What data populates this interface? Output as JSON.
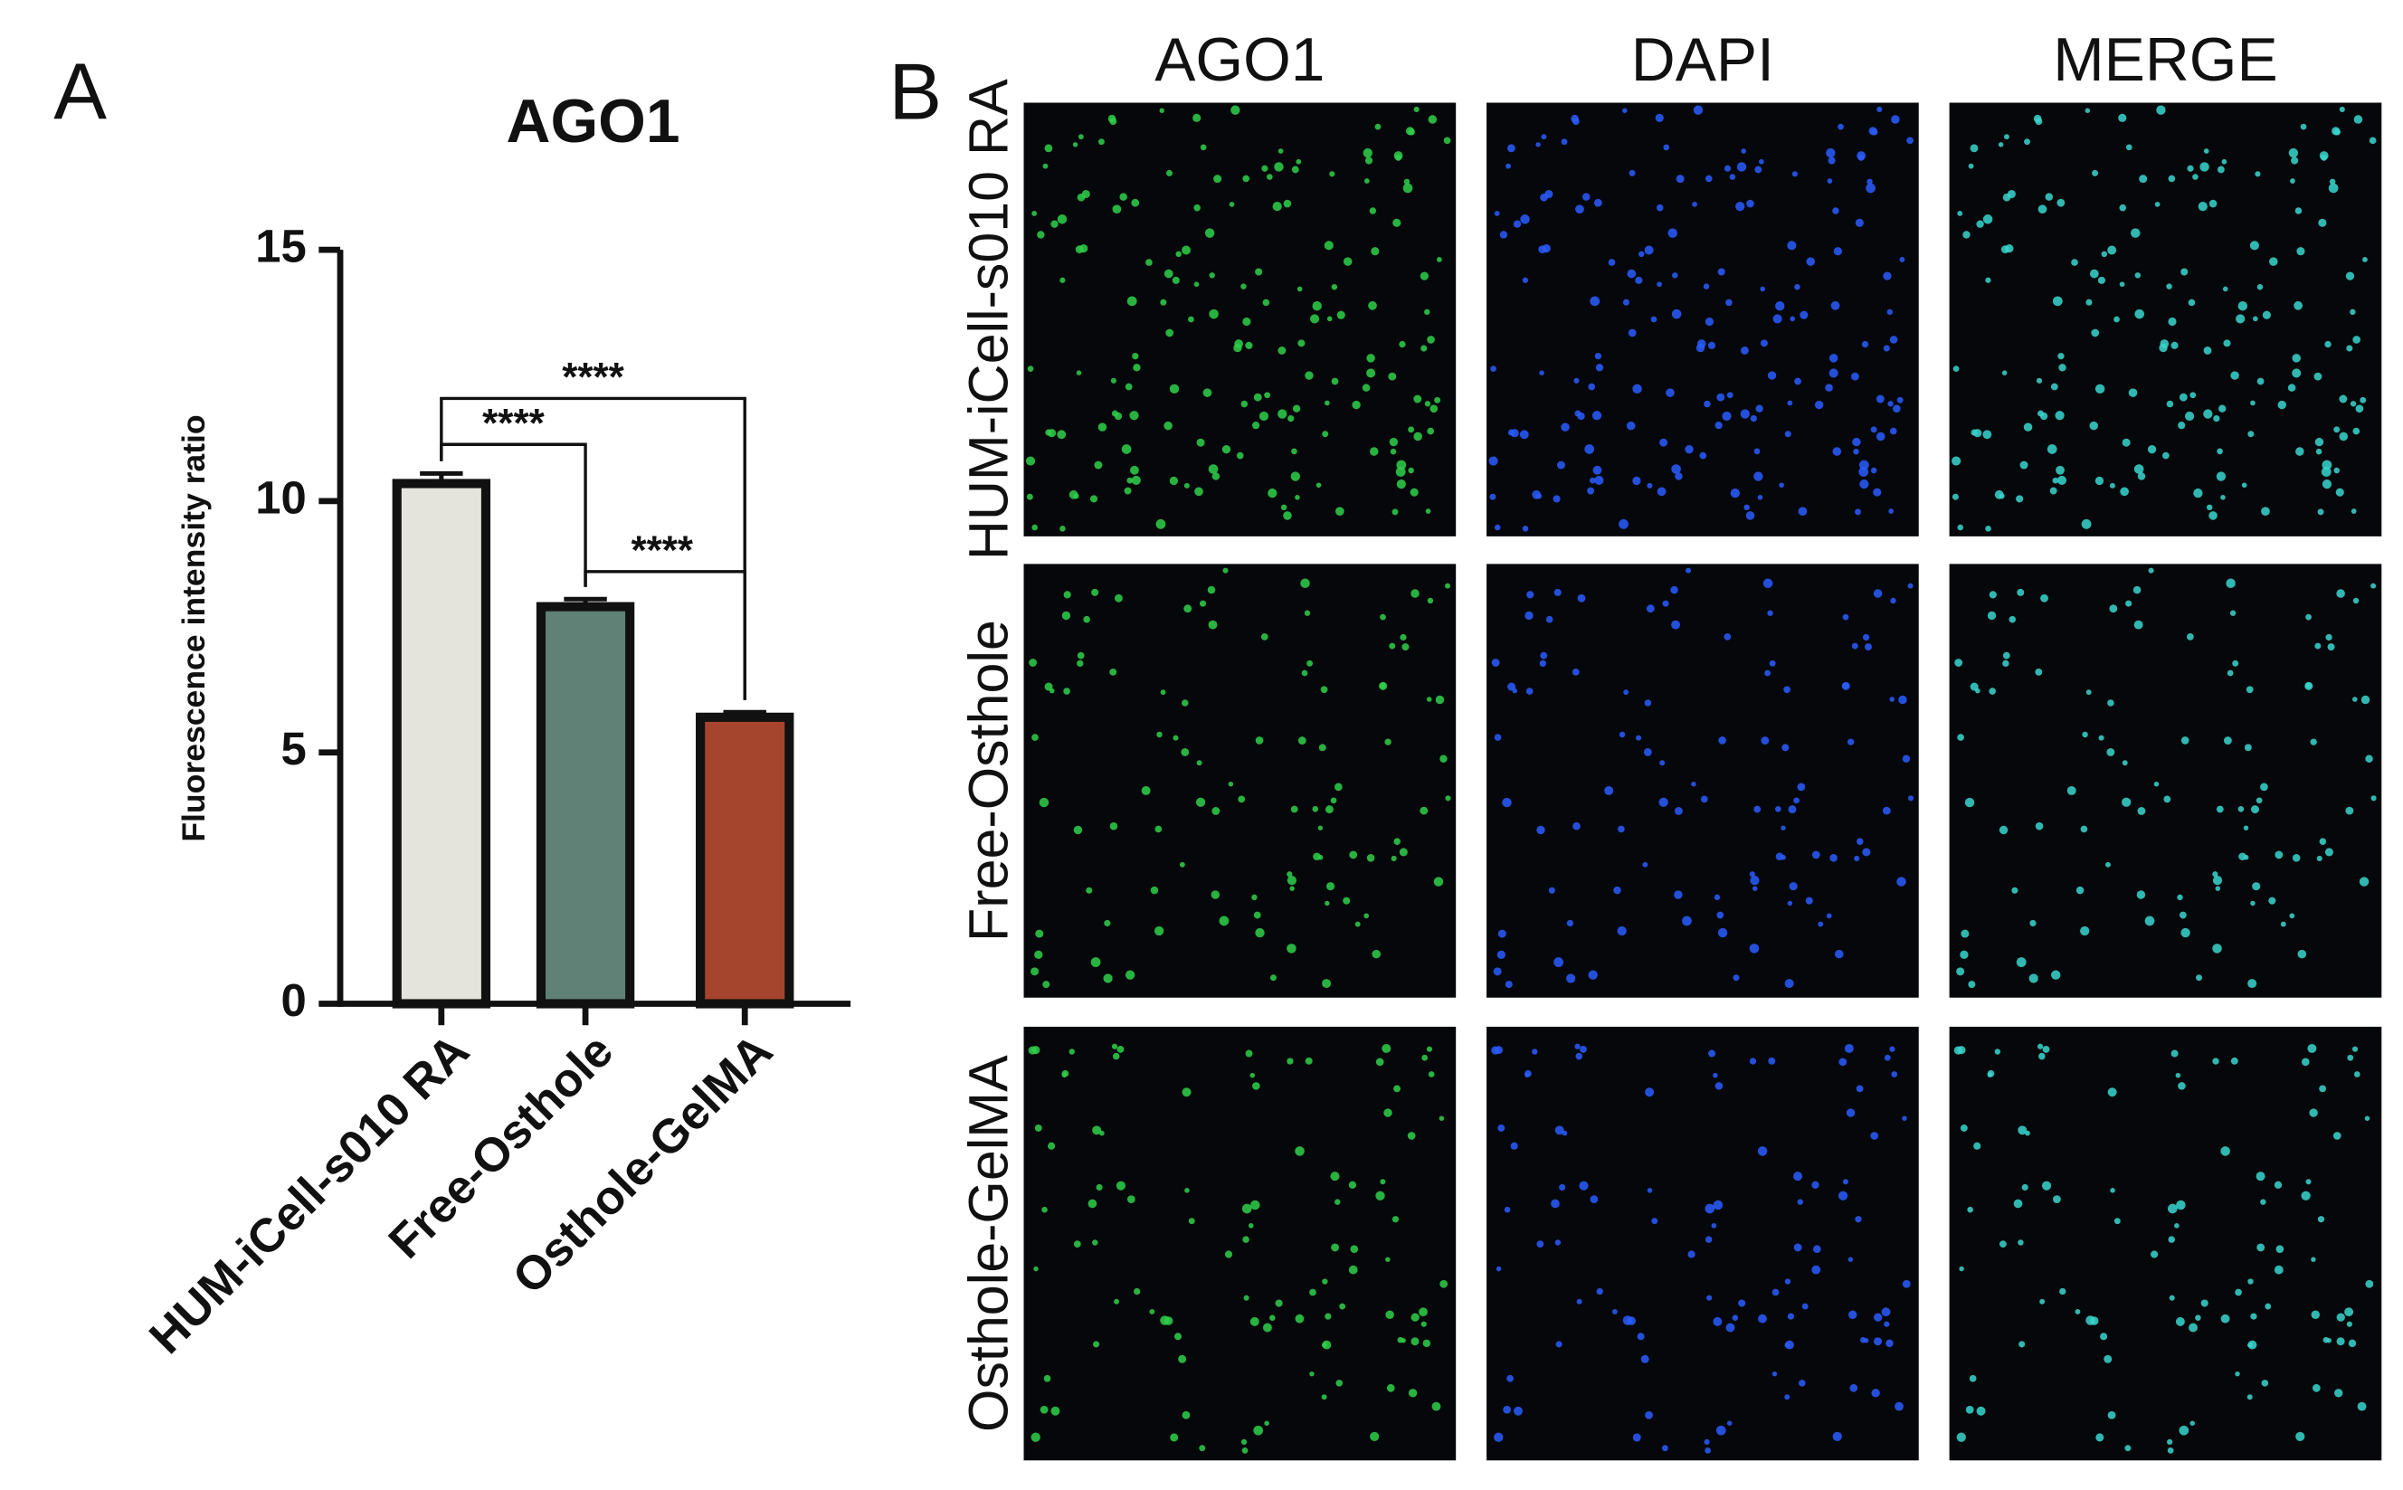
{
  "panel_labels": [
    "A",
    "B"
  ],
  "chart_data": {
    "type": "bar",
    "title": "AGO1",
    "y_label": "Fluorescence intensity ratio",
    "categories": [
      "HUM-iCell-s010 RA",
      "Free-Osthole",
      "Osthole-GelMA"
    ],
    "values": [
      10.35,
      7.9,
      5.7
    ],
    "errors": [
      0.2,
      0.15,
      0.1
    ],
    "colors": [
      "#e4e4dd",
      "#5f8176",
      "#a6452d"
    ],
    "ylim": [
      0,
      15
    ],
    "yticks": [
      0,
      5,
      10,
      15
    ],
    "annotations": [
      "****",
      "****",
      "****"
    ]
  },
  "image_grid": {
    "columns": [
      "AGO1",
      "DAPI",
      "MERGE"
    ],
    "rows": [
      "HUM-iCell-s010 RA",
      "Free-Osthole",
      "Osthole-GelMA"
    ]
  }
}
